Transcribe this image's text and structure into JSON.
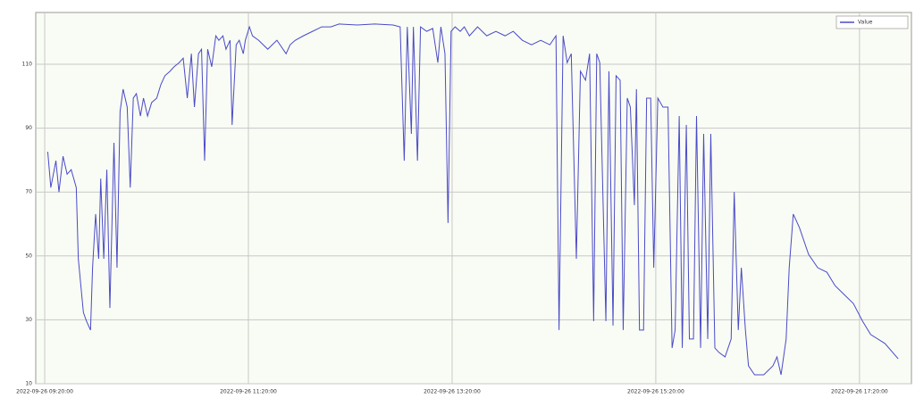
{
  "chart_data": {
    "type": "line",
    "xlim": [
      -0.088,
      8.51
    ],
    "ylim": [
      10,
      126.2
    ],
    "xticks": [
      {
        "value": 0,
        "label": "2022-09-26 09:20:00"
      },
      {
        "value": 2,
        "label": "2022-09-26 11:20:00"
      },
      {
        "value": 4,
        "label": "2022-09-26 13:20:00"
      },
      {
        "value": 6,
        "label": "2022-09-26 15:20:00"
      },
      {
        "value": 8,
        "label": "2022-09-26 17:20:00"
      }
    ],
    "yticks": [
      10,
      30,
      50,
      70,
      90,
      110
    ],
    "grid": true,
    "legend": "upper right",
    "series": [
      {
        "name": "Value",
        "color": "#4a4ac8",
        "x": [
          0.03,
          0.06,
          0.11,
          0.14,
          0.18,
          0.22,
          0.26,
          0.31,
          0.33,
          0.38,
          0.41,
          0.45,
          0.47,
          0.5,
          0.53,
          0.55,
          0.58,
          0.61,
          0.64,
          0.68,
          0.71,
          0.74,
          0.77,
          0.81,
          0.84,
          0.87,
          0.9,
          0.94,
          0.97,
          1.01,
          1.05,
          1.1,
          1.14,
          1.18,
          1.23,
          1.27,
          1.32,
          1.36,
          1.4,
          1.44,
          1.47,
          1.51,
          1.54,
          1.57,
          1.6,
          1.64,
          1.68,
          1.71,
          1.75,
          1.78,
          1.82,
          1.84,
          1.88,
          1.91,
          1.95,
          1.97,
          2.01,
          2.04,
          2.1,
          2.19,
          2.28,
          2.37,
          2.41,
          2.46,
          2.54,
          2.63,
          2.72,
          2.81,
          2.89,
          3.07,
          3.24,
          3.42,
          3.49,
          3.53,
          3.56,
          3.6,
          3.62,
          3.66,
          3.69,
          3.75,
          3.81,
          3.86,
          3.89,
          3.93,
          3.96,
          3.99,
          4.03,
          4.08,
          4.12,
          4.17,
          4.25,
          4.34,
          4.43,
          4.52,
          4.6,
          4.69,
          4.78,
          4.87,
          4.96,
          5.02,
          5.05,
          5.09,
          5.13,
          5.17,
          5.22,
          5.26,
          5.31,
          5.35,
          5.39,
          5.42,
          5.45,
          5.51,
          5.54,
          5.58,
          5.61,
          5.65,
          5.68,
          5.72,
          5.75,
          5.79,
          5.81,
          5.84,
          5.88,
          5.91,
          5.95,
          5.98,
          6.02,
          6.07,
          6.12,
          6.16,
          6.19,
          6.23,
          6.26,
          6.3,
          6.33,
          6.37,
          6.4,
          6.44,
          6.47,
          6.51,
          6.54,
          6.58,
          6.62,
          6.68,
          6.74,
          6.77,
          6.81,
          6.84,
          6.88,
          6.91,
          6.97,
          7.06,
          7.15,
          7.19,
          7.23,
          7.28,
          7.31,
          7.35,
          7.41,
          7.5,
          7.59,
          7.68,
          7.76,
          7.85,
          7.94,
          8.03,
          8.11,
          8.25,
          8.38
        ],
        "values": [
          82.6,
          71.4,
          79.8,
          70.0,
          81.2,
          75.6,
          77.0,
          71.4,
          49.1,
          32.3,
          29.6,
          26.8,
          46.3,
          63.1,
          49.1,
          74.2,
          49.1,
          77.0,
          33.7,
          85.4,
          46.3,
          95.2,
          102.2,
          96.6,
          71.4,
          99.4,
          100.8,
          93.8,
          99.4,
          93.8,
          98.0,
          99.4,
          103.6,
          106.4,
          107.8,
          109.2,
          110.5,
          111.9,
          99.4,
          113.3,
          96.6,
          113.3,
          114.7,
          79.8,
          114.7,
          109.2,
          118.9,
          117.5,
          118.9,
          114.7,
          117.5,
          91.0,
          116.1,
          117.5,
          113.3,
          117.5,
          121.7,
          118.9,
          117.5,
          114.7,
          117.5,
          113.3,
          116.1,
          117.5,
          118.9,
          120.3,
          121.7,
          121.7,
          122.6,
          122.3,
          122.6,
          122.3,
          121.7,
          79.8,
          121.7,
          88.2,
          121.7,
          79.8,
          121.7,
          120.3,
          121.2,
          110.5,
          121.7,
          113.3,
          60.3,
          120.3,
          121.7,
          120.3,
          121.7,
          118.9,
          121.7,
          118.9,
          120.3,
          118.9,
          120.3,
          117.5,
          116.1,
          117.5,
          116.1,
          118.9,
          26.8,
          118.9,
          110.5,
          113.3,
          49.1,
          107.8,
          105.0,
          113.3,
          29.6,
          113.3,
          110.5,
          29.6,
          107.8,
          28.2,
          106.4,
          105.0,
          26.8,
          99.4,
          96.6,
          65.9,
          102.2,
          26.8,
          26.8,
          99.4,
          99.4,
          46.3,
          99.4,
          96.6,
          96.6,
          21.2,
          26.8,
          93.8,
          21.2,
          91.0,
          24.0,
          24.0,
          93.8,
          21.2,
          88.2,
          24.0,
          88.2,
          21.2,
          19.8,
          18.4,
          24.0,
          70.0,
          26.8,
          46.3,
          26.8,
          15.6,
          12.8,
          12.8,
          15.6,
          18.4,
          12.8,
          24.0,
          46.3,
          63.1,
          58.9,
          50.5,
          46.3,
          44.9,
          40.7,
          37.9,
          35.1,
          29.6,
          25.4,
          22.6,
          17.8
        ]
      }
    ]
  }
}
